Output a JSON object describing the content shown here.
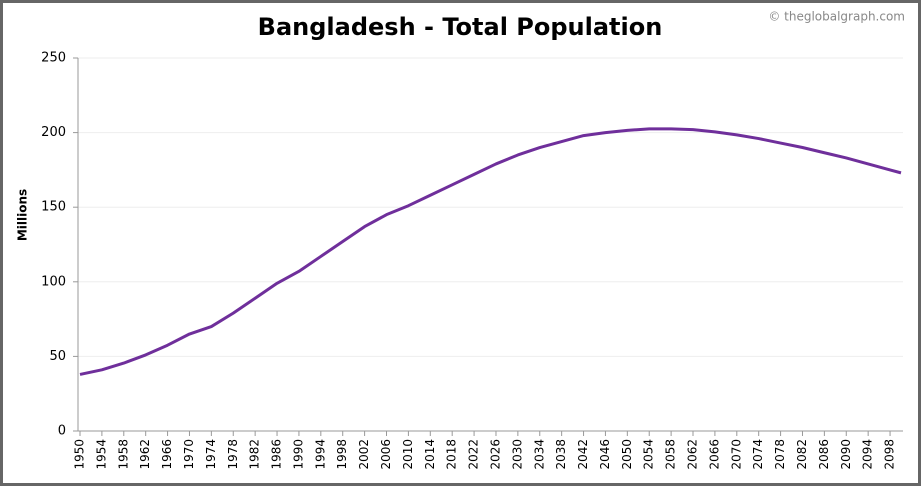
{
  "chart_data": {
    "type": "line",
    "title": "Bangladesh - Total Population",
    "watermark": "© theglobalgraph.com",
    "ylabel": "Millions",
    "x": [
      1950,
      1954,
      1958,
      1962,
      1966,
      1970,
      1974,
      1978,
      1982,
      1986,
      1990,
      1994,
      1998,
      2002,
      2006,
      2010,
      2014,
      2018,
      2022,
      2026,
      2030,
      2034,
      2038,
      2042,
      2046,
      2050,
      2054,
      2058,
      2062,
      2066,
      2070,
      2074,
      2078,
      2082,
      2086,
      2090,
      2094,
      2098,
      2100
    ],
    "series": [
      {
        "name": "Bangladesh",
        "color": "#6f2f9b",
        "values": [
          37.9,
          41,
          45.5,
          51,
          57.5,
          65,
          70,
          79,
          89,
          99,
          107,
          117,
          127,
          137,
          145,
          151,
          158,
          165,
          172,
          179,
          185,
          190,
          194,
          198,
          200,
          201.5,
          202.5,
          202.5,
          202,
          200.5,
          198.5,
          196,
          193,
          190,
          186.5,
          183,
          179,
          175,
          173
        ]
      }
    ],
    "xlim": [
      1950,
      2100
    ],
    "xticks": [
      1950,
      1954,
      1958,
      1962,
      1966,
      1970,
      1974,
      1978,
      1982,
      1986,
      1990,
      1994,
      1998,
      2002,
      2006,
      2010,
      2014,
      2018,
      2022,
      2026,
      2030,
      2034,
      2038,
      2042,
      2046,
      2050,
      2054,
      2058,
      2062,
      2066,
      2070,
      2074,
      2078,
      2082,
      2086,
      2090,
      2094,
      2098
    ],
    "ylim": [
      0,
      250
    ],
    "yticks": [
      0,
      50,
      100,
      150,
      200,
      250
    ],
    "grid": true
  }
}
